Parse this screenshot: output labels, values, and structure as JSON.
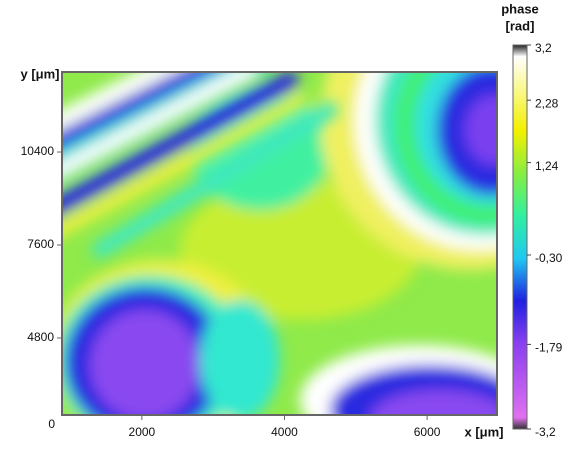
{
  "chart_data": {
    "type": "heatmap",
    "x_label": "x [μm]",
    "y_label": "y [μm]",
    "xlim": [
      880,
      6980
    ],
    "xticks": [
      2000,
      4000,
      6000
    ],
    "ylim": [
      2480,
      12810
    ],
    "yticks": [
      4800,
      7600,
      10400
    ],
    "origin_label": "0",
    "colorbar": {
      "title": "phase [rad]",
      "lim": [
        -3.2,
        3.2
      ],
      "ticks": [
        {
          "value": 3.2,
          "label": "3,2"
        },
        {
          "value": 2.28,
          "label": "2,28"
        },
        {
          "value": 1.24,
          "label": "1,24"
        },
        {
          "value": -0.3,
          "label": "-0,30"
        },
        {
          "value": -1.79,
          "label": "-1,79"
        },
        {
          "value": -3.2,
          "label": "-3,2"
        }
      ],
      "colormap": [
        "#222222",
        "#ffffff",
        "#f4f000",
        "#88ee40",
        "#30f0a0",
        "#20c8f0",
        "#2020e0",
        "#8a40f0",
        "#e070f0",
        "#333333"
      ]
    }
  }
}
